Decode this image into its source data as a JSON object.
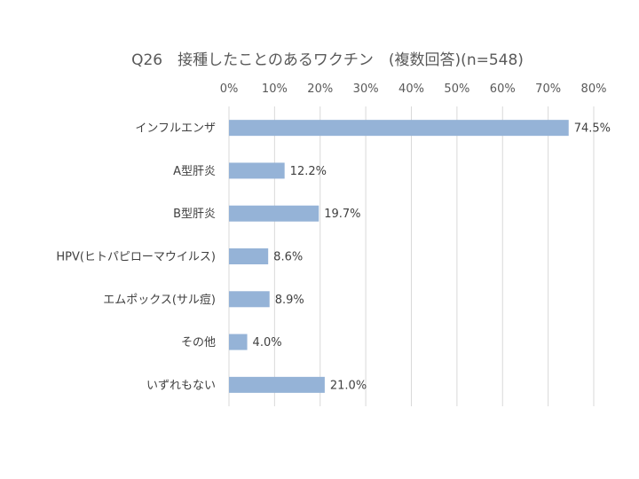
{
  "chart_data": {
    "type": "bar",
    "orientation": "horizontal",
    "title": "Q26　接種したことのあるワクチン　(複数回答)(n=548)",
    "categories": [
      "インフルエンザ",
      "A型肝炎",
      "B型肝炎",
      "HPV(ヒトパピローマウイルス)",
      "エムポックス(サル痘)",
      "その他",
      "いずれもない"
    ],
    "values": [
      74.5,
      12.2,
      19.7,
      8.6,
      8.9,
      4.0,
      21.0
    ],
    "value_labels": [
      "74.5%",
      "12.2%",
      "19.7%",
      "8.6%",
      "8.9%",
      "4.0%",
      "21.0%"
    ],
    "xlim": [
      0,
      80
    ],
    "x_ticks": [
      0,
      10,
      20,
      30,
      40,
      50,
      60,
      70,
      80
    ],
    "x_tick_labels": [
      "0%",
      "10%",
      "20%",
      "30%",
      "40%",
      "50%",
      "60%",
      "70%",
      "80%"
    ],
    "axis_position": "top",
    "grid": true,
    "legend": "none",
    "colors": {
      "bar": "#95b3d7",
      "grid": "#d9d9d9",
      "text": "#595959"
    }
  }
}
